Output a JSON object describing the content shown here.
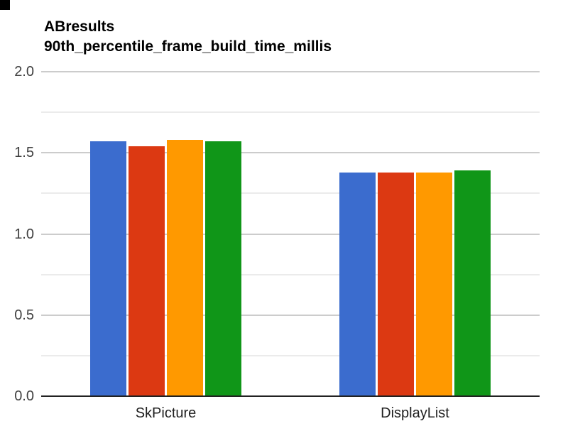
{
  "chart_data": {
    "type": "bar",
    "title": "ABresults",
    "subtitle": "90th_percentile_frame_build_time_millis",
    "categories": [
      "SkPicture",
      "DisplayList"
    ],
    "series": [
      {
        "name": "series-blue",
        "color": "#3B6CCE",
        "values": [
          1.57,
          1.38
        ]
      },
      {
        "name": "series-red",
        "color": "#DC3912",
        "values": [
          1.54,
          1.38
        ]
      },
      {
        "name": "series-orange",
        "color": "#FF9900",
        "values": [
          1.58,
          1.38
        ]
      },
      {
        "name": "series-green",
        "color": "#109618",
        "values": [
          1.57,
          1.39
        ]
      }
    ],
    "xlabel": "",
    "ylabel": "",
    "ylim": [
      0.0,
      2.0
    ],
    "yticks": [
      0.0,
      0.5,
      1.0,
      1.5,
      2.0
    ],
    "ytick_labels": [
      "0.0",
      "0.5",
      "1.0",
      "1.5",
      "2.0"
    ],
    "minor_grid_step": 0.25,
    "grid": true,
    "legend": "none"
  },
  "colors": {
    "background": "#ffffff",
    "major_grid": "#cccccc",
    "minor_grid": "#ebebeb",
    "axis_line": "#222222",
    "tick_label": "#404040",
    "category_label": "#1f1f1f",
    "title": "#000000",
    "corner_mark": "#000000"
  }
}
